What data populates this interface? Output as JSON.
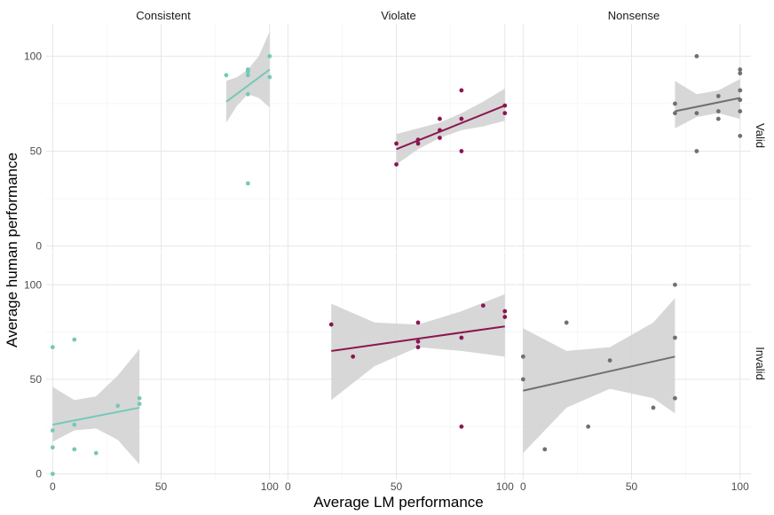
{
  "chart_data": {
    "type": "scatter",
    "xlabel": "Average LM performance",
    "ylabel": "Average human performance",
    "xlim": [
      -3,
      105
    ],
    "ylim": [
      -3,
      117
    ],
    "x_ticks": [
      0,
      50,
      100
    ],
    "y_ticks": [
      0,
      50,
      100
    ],
    "grid": true,
    "columns": [
      "Consistent",
      "Violate",
      "Nonsense"
    ],
    "rows": [
      "Valid",
      "Invalid"
    ],
    "colors": {
      "Consistent": "#76c8b9",
      "Violate": "#8b1651",
      "Nonsense": "#707070",
      "ribbon": "#d3d3d3",
      "grid_major": "#e6e6e6",
      "grid_minor": "#f2f2f2",
      "text": "#333333",
      "tick_text": "#4d4d4d"
    },
    "panels": [
      {
        "column": "Consistent",
        "row": "Valid",
        "points": [
          [
            80,
            90
          ],
          [
            90,
            93
          ],
          [
            90,
            92
          ],
          [
            90,
            90
          ],
          [
            90,
            80
          ],
          [
            100,
            100
          ],
          [
            100,
            89
          ],
          [
            90,
            33
          ]
        ],
        "fit": {
          "x": [
            80,
            100
          ],
          "y": [
            76,
            93
          ]
        },
        "band": [
          [
            80,
            65,
            87
          ],
          [
            85,
            74,
            89
          ],
          [
            90,
            80,
            93
          ],
          [
            95,
            78,
            100
          ],
          [
            100,
            73,
            113
          ]
        ]
      },
      {
        "column": "Violate",
        "row": "Valid",
        "points": [
          [
            50,
            43
          ],
          [
            50,
            54
          ],
          [
            60,
            56
          ],
          [
            60,
            54
          ],
          [
            70,
            67
          ],
          [
            70,
            61
          ],
          [
            70,
            57
          ],
          [
            80,
            82
          ],
          [
            80,
            67
          ],
          [
            80,
            50
          ],
          [
            100,
            74
          ],
          [
            100,
            70
          ]
        ],
        "fit": {
          "x": [
            50,
            100
          ],
          "y": [
            51,
            74
          ]
        },
        "band": [
          [
            50,
            43,
            59
          ],
          [
            60,
            51,
            62
          ],
          [
            70,
            57,
            65
          ],
          [
            80,
            61,
            70
          ],
          [
            90,
            63,
            76
          ],
          [
            100,
            66,
            83
          ]
        ]
      },
      {
        "column": "Nonsense",
        "row": "Valid",
        "points": [
          [
            70,
            75
          ],
          [
            70,
            70
          ],
          [
            80,
            100
          ],
          [
            80,
            70
          ],
          [
            80,
            50
          ],
          [
            90,
            79
          ],
          [
            90,
            71
          ],
          [
            90,
            67
          ],
          [
            100,
            93
          ],
          [
            100,
            91
          ],
          [
            100,
            82
          ],
          [
            100,
            77
          ],
          [
            100,
            71
          ],
          [
            100,
            58
          ]
        ],
        "fit": {
          "x": [
            70,
            100
          ],
          "y": [
            71,
            78
          ]
        },
        "band": [
          [
            70,
            62,
            87
          ],
          [
            80,
            68,
            80
          ],
          [
            90,
            70,
            82
          ],
          [
            100,
            67,
            88
          ]
        ]
      },
      {
        "column": "Consistent",
        "row": "Invalid",
        "points": [
          [
            0,
            67
          ],
          [
            0,
            23
          ],
          [
            0,
            14
          ],
          [
            0,
            0
          ],
          [
            10,
            71
          ],
          [
            10,
            26
          ],
          [
            10,
            13
          ],
          [
            20,
            11
          ],
          [
            30,
            36
          ],
          [
            40,
            40
          ],
          [
            40,
            37
          ]
        ],
        "fit": {
          "x": [
            0,
            40
          ],
          "y": [
            26,
            35
          ]
        },
        "band": [
          [
            0,
            17,
            46
          ],
          [
            10,
            23,
            39
          ],
          [
            20,
            24,
            41
          ],
          [
            30,
            18,
            52
          ],
          [
            40,
            5,
            66
          ]
        ]
      },
      {
        "column": "Violate",
        "row": "Invalid",
        "points": [
          [
            20,
            79
          ],
          [
            30,
            62
          ],
          [
            60,
            80
          ],
          [
            60,
            70
          ],
          [
            60,
            67
          ],
          [
            80,
            72
          ],
          [
            80,
            25
          ],
          [
            90,
            89
          ],
          [
            100,
            86
          ],
          [
            100,
            83
          ]
        ],
        "fit": {
          "x": [
            20,
            100
          ],
          "y": [
            65,
            78
          ]
        },
        "band": [
          [
            20,
            39,
            90
          ],
          [
            40,
            57,
            80
          ],
          [
            60,
            67,
            79
          ],
          [
            80,
            65,
            86
          ],
          [
            100,
            62,
            95
          ]
        ]
      },
      {
        "column": "Nonsense",
        "row": "Invalid",
        "points": [
          [
            0,
            62
          ],
          [
            0,
            50
          ],
          [
            10,
            13
          ],
          [
            20,
            80
          ],
          [
            30,
            25
          ],
          [
            40,
            60
          ],
          [
            60,
            35
          ],
          [
            70,
            100
          ],
          [
            70,
            72
          ],
          [
            70,
            40
          ]
        ],
        "fit": {
          "x": [
            0,
            70
          ],
          "y": [
            44,
            62
          ]
        },
        "band": [
          [
            0,
            11,
            77
          ],
          [
            20,
            35,
            65
          ],
          [
            40,
            45,
            67
          ],
          [
            60,
            40,
            80
          ],
          [
            70,
            32,
            93
          ]
        ]
      }
    ]
  }
}
